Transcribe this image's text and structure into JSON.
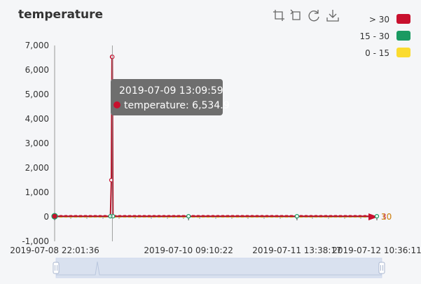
{
  "chart_data": {
    "type": "line",
    "title": "temperature",
    "xlabel": "",
    "ylabel": "",
    "ylim": [
      -1000,
      7000
    ],
    "yticks": [
      "-1,000",
      "0",
      "1,000",
      "2,000",
      "3,000",
      "4,000",
      "5,000",
      "6,000",
      "7,000"
    ],
    "xticks": [
      "2019-07-08 22:01:36",
      "2019-07-10 09:10:22",
      "2019-07-11 13:38:17",
      "2019-07-12 10:36:11"
    ],
    "xrange": [
      "2019-07-08 22:01:36",
      "2019-07-12 10:36:11"
    ],
    "series": [
      {
        "name": "temperature",
        "points": [
          {
            "x": "2019-07-08 22:01:36",
            "y": 25
          },
          {
            "x": "2019-07-09 12:40:00",
            "y": 25
          },
          {
            "x": "2019-07-09 12:55:00",
            "y": 1500
          },
          {
            "x": "2019-07-09 13:05:00",
            "y": 6534.9
          },
          {
            "x": "2019-07-09 13:09:59",
            "y": 6534.9
          },
          {
            "x": "2019-07-09 13:20:00",
            "y": 25
          },
          {
            "x": "2019-07-10 09:10:22",
            "y": 25
          },
          {
            "x": "2019-07-11 13:38:17",
            "y": 25
          },
          {
            "x": "2019-07-12 10:36:11",
            "y": 25
          }
        ]
      }
    ],
    "visual_map": [
      {
        "label": "> 30",
        "color": "#c8102e"
      },
      {
        "label": "15 - 30",
        "color": "#1a9a62"
      },
      {
        "label": "0 - 15",
        "color": "#fbdb2f"
      }
    ],
    "mark_line_labels": [
      "30",
      "10"
    ],
    "tooltip": {
      "title": "2019-07-09 13:09:59",
      "series": "temperature",
      "value": "6,534.9",
      "text": "temperature: 6,534.9"
    },
    "legend_position": "top-right",
    "grid": false
  },
  "toolbox": {
    "icons": [
      "zoom-icon",
      "zoom-reset-icon",
      "restore-icon",
      "save-image-icon"
    ]
  },
  "data_zoom": {
    "start_percent": 0,
    "end_percent": 100
  }
}
